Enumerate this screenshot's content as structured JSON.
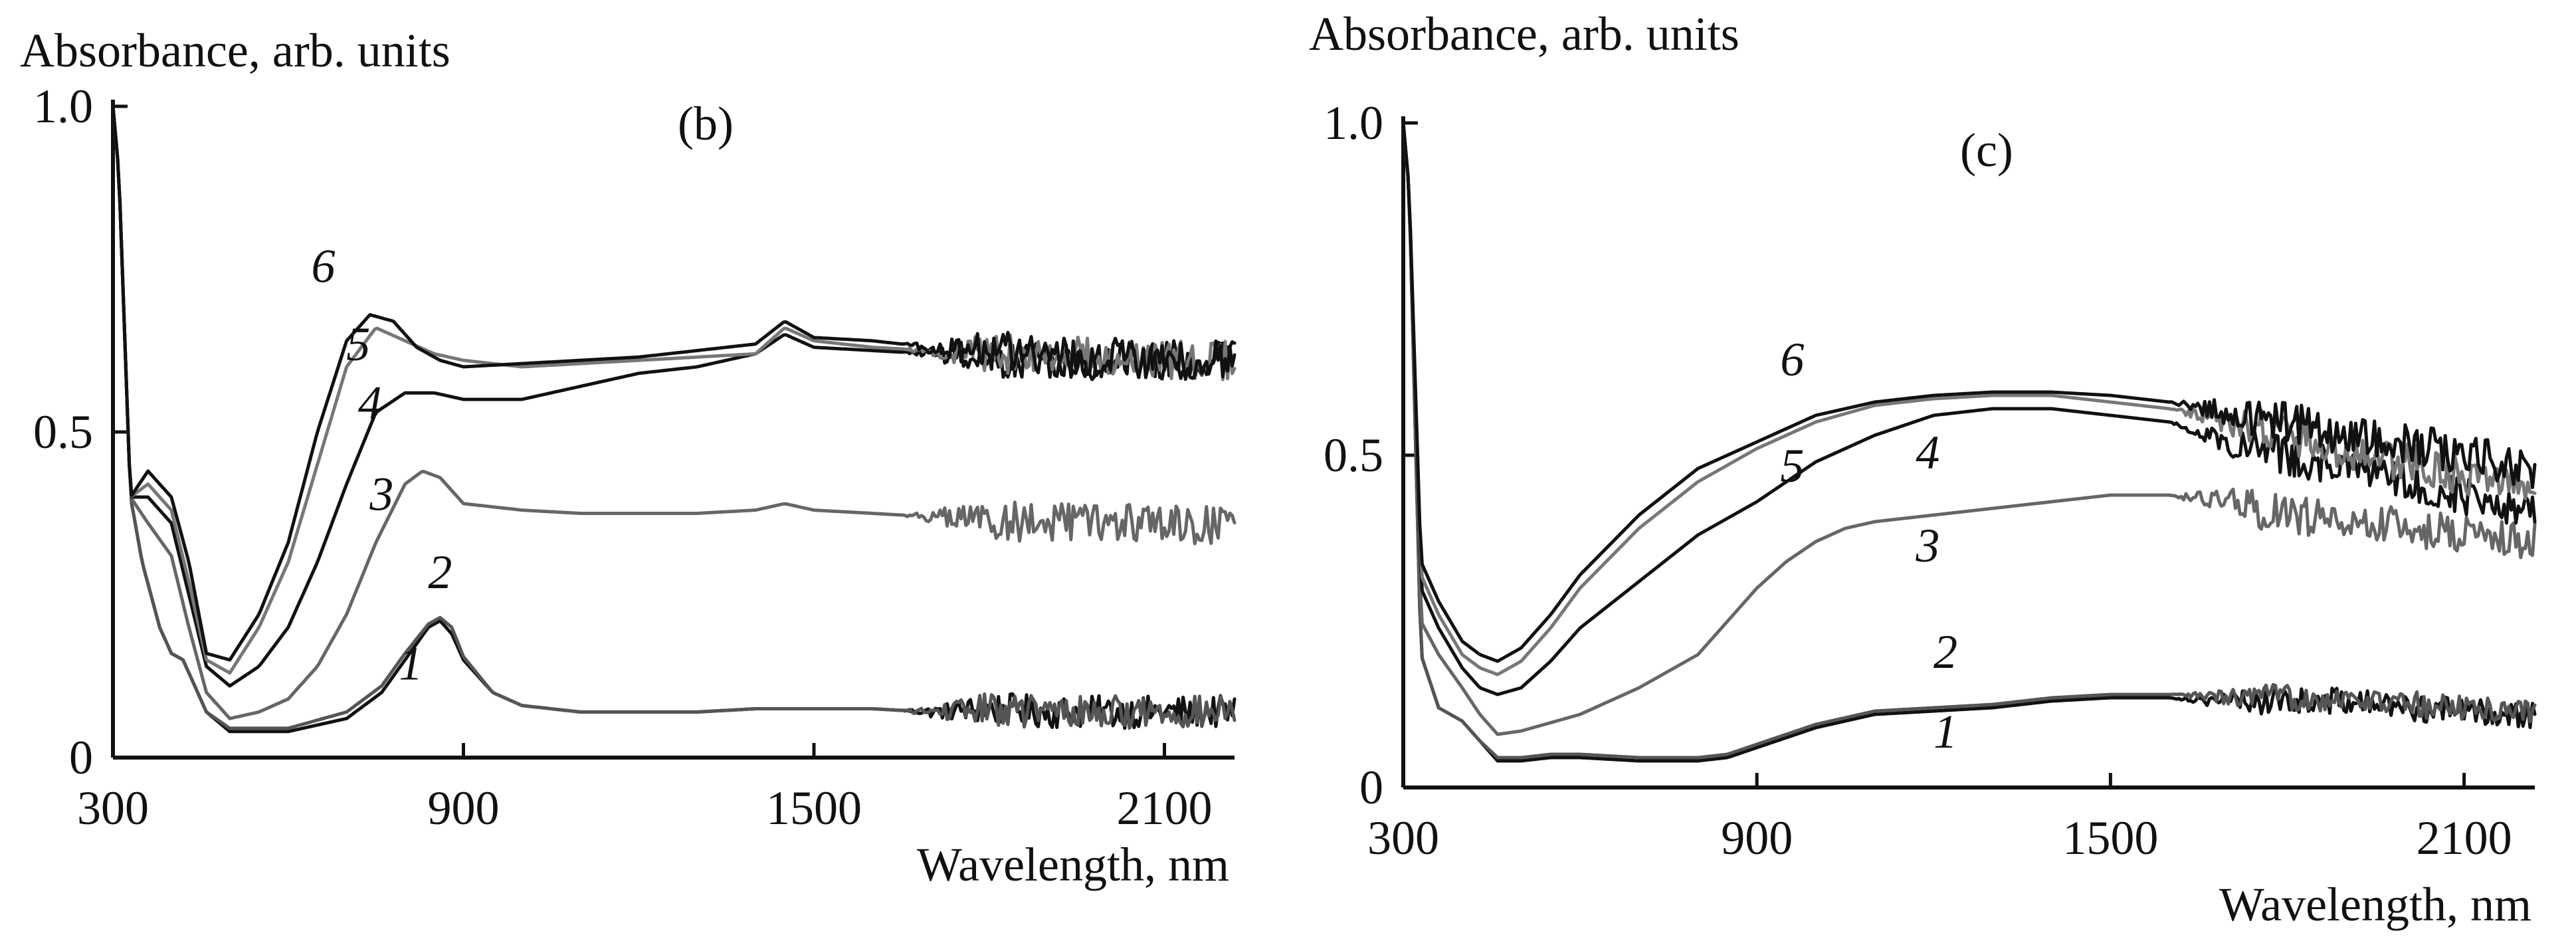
{
  "chart_data": [
    {
      "type": "line",
      "panel_label": "(b)",
      "ylabel": "Absorbance, arb. units",
      "xlabel": "Wavelength, nm",
      "xlim": [
        300,
        2220
      ],
      "ylim": [
        0,
        1.0
      ],
      "x_ticks": [
        "300",
        "900",
        "1500",
        "2100"
      ],
      "y_ticks": [
        "0",
        "0.5",
        "1.0"
      ],
      "series": [
        {
          "name": "1",
          "color": "#111111",
          "x": [
            300,
            310,
            330,
            350,
            380,
            400,
            420,
            440,
            460,
            500,
            600,
            700,
            760,
            800,
            840,
            860,
            880,
            900,
            950,
            1000,
            1100,
            1200,
            1300,
            1400,
            1500,
            1600,
            1700,
            1800,
            1900,
            2000,
            2100,
            2220
          ],
          "y": [
            1.0,
            0.9,
            0.4,
            0.3,
            0.2,
            0.16,
            0.15,
            0.11,
            0.07,
            0.04,
            0.04,
            0.06,
            0.1,
            0.15,
            0.2,
            0.21,
            0.19,
            0.15,
            0.1,
            0.08,
            0.07,
            0.07,
            0.07,
            0.075,
            0.075,
            0.075,
            0.07,
            0.075,
            0.07,
            0.07,
            0.07,
            0.07
          ],
          "noise_from": 1650,
          "noise_amp": 0.025
        },
        {
          "name": "2",
          "color": "#555555",
          "x": [
            300,
            310,
            330,
            350,
            380,
            400,
            420,
            440,
            460,
            500,
            600,
            700,
            760,
            800,
            840,
            860,
            880,
            900,
            950,
            1000,
            1100,
            1200,
            1300,
            1400,
            1500,
            1600,
            1700,
            1800,
            1900,
            2000,
            2100,
            2220
          ],
          "y": [
            1.0,
            0.9,
            0.4,
            0.3,
            0.2,
            0.16,
            0.15,
            0.11,
            0.07,
            0.045,
            0.045,
            0.07,
            0.11,
            0.16,
            0.205,
            0.215,
            0.2,
            0.155,
            0.1,
            0.08,
            0.07,
            0.07,
            0.07,
            0.075,
            0.075,
            0.075,
            0.07,
            0.075,
            0.07,
            0.07,
            0.07,
            0.07
          ],
          "noise_from": 1650,
          "noise_amp": 0.025
        },
        {
          "name": "3",
          "color": "#666666",
          "x": [
            300,
            310,
            330,
            360,
            400,
            430,
            460,
            500,
            550,
            600,
            650,
            700,
            750,
            800,
            830,
            860,
            900,
            1000,
            1100,
            1200,
            1300,
            1400,
            1450,
            1500,
            1600,
            1700,
            1800,
            1900,
            2000,
            2100,
            2220
          ],
          "y": [
            1.0,
            0.9,
            0.4,
            0.36,
            0.31,
            0.2,
            0.1,
            0.06,
            0.07,
            0.09,
            0.14,
            0.22,
            0.33,
            0.42,
            0.44,
            0.43,
            0.39,
            0.38,
            0.375,
            0.375,
            0.375,
            0.38,
            0.39,
            0.38,
            0.375,
            0.37,
            0.365,
            0.36,
            0.36,
            0.36,
            0.355
          ],
          "noise_from": 1650,
          "noise_amp": 0.03
        },
        {
          "name": "4",
          "color": "#111111",
          "x": [
            300,
            310,
            330,
            360,
            400,
            430,
            460,
            500,
            550,
            600,
            650,
            700,
            750,
            800,
            850,
            900,
            1000,
            1100,
            1200,
            1300,
            1400,
            1450,
            1500,
            1600,
            1700,
            1800,
            1900,
            2000,
            2100,
            2220
          ],
          "y": [
            1.0,
            0.9,
            0.4,
            0.4,
            0.36,
            0.25,
            0.14,
            0.11,
            0.14,
            0.2,
            0.3,
            0.42,
            0.53,
            0.56,
            0.56,
            0.55,
            0.55,
            0.57,
            0.59,
            0.6,
            0.62,
            0.65,
            0.63,
            0.625,
            0.62,
            0.615,
            0.61,
            0.61,
            0.61,
            0.61
          ],
          "noise_from": 1650,
          "noise_amp": 0.03
        },
        {
          "name": "5",
          "color": "#777777",
          "x": [
            300,
            310,
            330,
            360,
            400,
            430,
            460,
            500,
            550,
            600,
            650,
            700,
            750,
            800,
            850,
            900,
            1000,
            1100,
            1200,
            1300,
            1400,
            1450,
            1500,
            1600,
            1700,
            1800,
            1900,
            2000,
            2100,
            2220
          ],
          "y": [
            1.0,
            0.9,
            0.4,
            0.42,
            0.38,
            0.27,
            0.15,
            0.13,
            0.2,
            0.3,
            0.45,
            0.6,
            0.66,
            0.64,
            0.62,
            0.61,
            0.6,
            0.605,
            0.61,
            0.615,
            0.62,
            0.66,
            0.64,
            0.63,
            0.625,
            0.62,
            0.62,
            0.615,
            0.61,
            0.61
          ],
          "noise_from": 1650,
          "noise_amp": 0.03
        },
        {
          "name": "6",
          "color": "#111111",
          "x": [
            300,
            310,
            330,
            360,
            400,
            430,
            460,
            500,
            550,
            600,
            650,
            700,
            740,
            780,
            820,
            860,
            900,
            1000,
            1100,
            1200,
            1300,
            1400,
            1450,
            1500,
            1600,
            1700,
            1800,
            1900,
            2000,
            2100,
            2220
          ],
          "y": [
            1.0,
            0.9,
            0.4,
            0.44,
            0.4,
            0.3,
            0.16,
            0.15,
            0.22,
            0.33,
            0.5,
            0.64,
            0.68,
            0.67,
            0.63,
            0.61,
            0.6,
            0.605,
            0.61,
            0.615,
            0.625,
            0.635,
            0.67,
            0.645,
            0.64,
            0.63,
            0.625,
            0.62,
            0.615,
            0.61,
            0.61
          ],
          "noise_from": 1650,
          "noise_amp": 0.03
        }
      ],
      "curve_labels": [
        {
          "text": "1",
          "x": 810,
          "y": 0.12
        },
        {
          "text": "2",
          "x": 860,
          "y": 0.26
        },
        {
          "text": "3",
          "x": 760,
          "y": 0.38
        },
        {
          "text": "4",
          "x": 740,
          "y": 0.52
        },
        {
          "text": "5",
          "x": 720,
          "y": 0.61
        },
        {
          "text": "6",
          "x": 660,
          "y": 0.73
        }
      ]
    },
    {
      "type": "line",
      "panel_label": "(c)",
      "ylabel": "Absorbance, arb. units",
      "xlabel": "Wavelength, nm",
      "xlim": [
        300,
        2220
      ],
      "ylim": [
        0,
        1.0
      ],
      "x_ticks": [
        "300",
        "900",
        "1500",
        "2100"
      ],
      "y_ticks": [
        "0",
        "0.5",
        "1.0"
      ],
      "series": [
        {
          "name": "1",
          "color": "#111111",
          "x": [
            300,
            310,
            330,
            360,
            400,
            430,
            460,
            500,
            550,
            600,
            700,
            800,
            850,
            900,
            1000,
            1100,
            1200,
            1300,
            1400,
            1500,
            1600,
            1700,
            1800,
            1900,
            2000,
            2100,
            2220
          ],
          "y": [
            1.0,
            0.9,
            0.2,
            0.12,
            0.1,
            0.07,
            0.04,
            0.04,
            0.045,
            0.045,
            0.04,
            0.04,
            0.045,
            0.06,
            0.09,
            0.11,
            0.115,
            0.12,
            0.13,
            0.135,
            0.135,
            0.13,
            0.13,
            0.13,
            0.12,
            0.115,
            0.11
          ],
          "noise_from": 1600,
          "noise_amp": 0.02
        },
        {
          "name": "2",
          "color": "#555555",
          "x": [
            300,
            310,
            330,
            360,
            400,
            430,
            460,
            500,
            550,
            600,
            700,
            800,
            850,
            900,
            1000,
            1100,
            1200,
            1300,
            1400,
            1500,
            1600,
            1700,
            1800,
            1900,
            2000,
            2100,
            2220
          ],
          "y": [
            1.0,
            0.9,
            0.2,
            0.12,
            0.1,
            0.07,
            0.045,
            0.045,
            0.05,
            0.05,
            0.045,
            0.045,
            0.05,
            0.065,
            0.095,
            0.115,
            0.12,
            0.125,
            0.135,
            0.14,
            0.14,
            0.135,
            0.135,
            0.135,
            0.125,
            0.12,
            0.115
          ],
          "noise_from": 1600,
          "noise_amp": 0.02
        },
        {
          "name": "3",
          "color": "#666666",
          "x": [
            300,
            310,
            330,
            360,
            400,
            430,
            460,
            500,
            600,
            700,
            800,
            850,
            900,
            950,
            1000,
            1050,
            1100,
            1150,
            1200,
            1300,
            1400,
            1500,
            1600,
            1700,
            1800,
            1900,
            2000,
            2100,
            2220
          ],
          "y": [
            1.0,
            0.9,
            0.25,
            0.2,
            0.15,
            0.11,
            0.08,
            0.085,
            0.11,
            0.15,
            0.2,
            0.25,
            0.3,
            0.34,
            0.37,
            0.39,
            0.4,
            0.405,
            0.41,
            0.42,
            0.43,
            0.44,
            0.44,
            0.43,
            0.41,
            0.4,
            0.39,
            0.38,
            0.37
          ],
          "noise_from": 1600,
          "noise_amp": 0.03
        },
        {
          "name": "4",
          "color": "#111111",
          "x": [
            300,
            310,
            330,
            360,
            400,
            430,
            460,
            500,
            550,
            600,
            700,
            800,
            900,
            1000,
            1100,
            1200,
            1300,
            1400,
            1500,
            1600,
            1700,
            1800,
            1900,
            2000,
            2100,
            2220
          ],
          "y": [
            1.0,
            0.9,
            0.3,
            0.24,
            0.18,
            0.15,
            0.14,
            0.15,
            0.19,
            0.24,
            0.31,
            0.38,
            0.43,
            0.49,
            0.53,
            0.56,
            0.57,
            0.57,
            0.56,
            0.55,
            0.52,
            0.5,
            0.48,
            0.46,
            0.44,
            0.42
          ],
          "noise_from": 1600,
          "noise_amp": 0.03
        },
        {
          "name": "5",
          "color": "#777777",
          "x": [
            300,
            310,
            330,
            360,
            400,
            430,
            460,
            500,
            550,
            600,
            700,
            800,
            900,
            1000,
            1100,
            1200,
            1300,
            1400,
            1500,
            1600,
            1700,
            1800,
            1900,
            2000,
            2100,
            2220
          ],
          "y": [
            1.0,
            0.9,
            0.32,
            0.26,
            0.2,
            0.18,
            0.17,
            0.19,
            0.24,
            0.3,
            0.39,
            0.46,
            0.51,
            0.55,
            0.575,
            0.585,
            0.59,
            0.59,
            0.58,
            0.57,
            0.55,
            0.53,
            0.51,
            0.49,
            0.47,
            0.45
          ],
          "noise_from": 1600,
          "noise_amp": 0.03
        },
        {
          "name": "6",
          "color": "#111111",
          "x": [
            300,
            310,
            330,
            360,
            400,
            430,
            460,
            500,
            550,
            600,
            700,
            800,
            900,
            1000,
            1100,
            1200,
            1300,
            1400,
            1500,
            1600,
            1700,
            1800,
            1900,
            2000,
            2100,
            2220
          ],
          "y": [
            1.0,
            0.9,
            0.34,
            0.28,
            0.22,
            0.2,
            0.19,
            0.21,
            0.26,
            0.32,
            0.41,
            0.48,
            0.52,
            0.56,
            0.58,
            0.59,
            0.595,
            0.595,
            0.59,
            0.58,
            0.565,
            0.55,
            0.53,
            0.52,
            0.5,
            0.48
          ],
          "noise_from": 1600,
          "noise_amp": 0.03
        }
      ],
      "curve_labels": [
        {
          "text": "1",
          "x": 1220,
          "y": 0.06
        },
        {
          "text": "2",
          "x": 1220,
          "y": 0.18
        },
        {
          "text": "3",
          "x": 1190,
          "y": 0.34
        },
        {
          "text": "4",
          "x": 1190,
          "y": 0.48
        },
        {
          "text": "5",
          "x": 960,
          "y": 0.46
        },
        {
          "text": "6",
          "x": 960,
          "y": 0.62
        }
      ]
    }
  ]
}
